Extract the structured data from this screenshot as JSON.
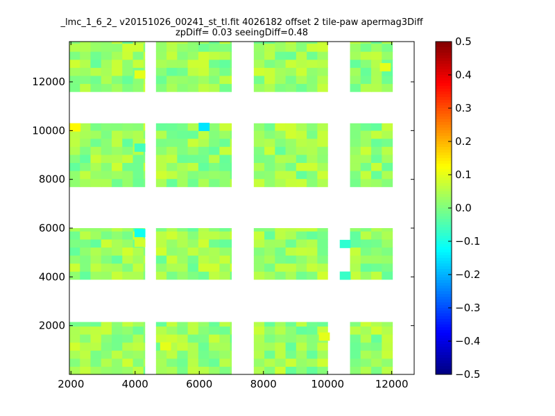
{
  "chart_data": {
    "type": "heatmap",
    "title": "_lmc_1_6_2_ v20151026_00241_st_tl.fit 4026182 offset 2 tile-paw apermag3Diff",
    "subtitle": "zpDiff= 0.03 seeingDiff=0.48",
    "xlabel": "",
    "ylabel": "",
    "xlim": [
      1950,
      12700
    ],
    "ylim": [
      0,
      13650
    ],
    "xticks": [
      "2000",
      "4000",
      "6000",
      "8000",
      "10000",
      "12000"
    ],
    "xtick_values": [
      2000,
      4000,
      6000,
      8000,
      10000,
      12000
    ],
    "yticks": [
      "2000",
      "4000",
      "6000",
      "8000",
      "10000",
      "12000"
    ],
    "ytick_values": [
      2000,
      4000,
      6000,
      8000,
      10000,
      12000
    ],
    "colorbar": {
      "colormap": "jet",
      "range": [
        -0.5,
        0.5
      ],
      "ticks": [
        "0.5",
        "0.4",
        "0.3",
        "0.2",
        "0.1",
        "0.0",
        "−0.1",
        "−0.2",
        "−0.3",
        "−0.4",
        "−0.5"
      ],
      "tick_values": [
        0.5,
        0.4,
        0.3,
        0.2,
        0.1,
        0.0,
        -0.1,
        -0.2,
        -0.3,
        -0.4,
        -0.5
      ]
    },
    "grid": false,
    "detector_columns": [
      [
        1950,
        4300
      ],
      [
        4650,
        7000
      ],
      [
        7700,
        10000
      ],
      [
        10700,
        12700
      ]
    ],
    "detector_rows": [
      [
        0,
        2150
      ],
      [
        3900,
        6000
      ],
      [
        7700,
        10300
      ],
      [
        11600,
        13650
      ]
    ],
    "cell_size": [
      330,
      330
    ],
    "holes": [
      {
        "x": [
          4300,
          4650
        ],
        "y": [
          0,
          2150
        ]
      },
      {
        "x": [
          10000,
          10350
        ],
        "y": [
          0,
          2150
        ]
      },
      {
        "x": [
          12000,
          12700
        ],
        "y": [
          0,
          2150
        ]
      },
      {
        "x": [
          10000,
          10350
        ],
        "y": [
          3900,
          6000
        ]
      },
      {
        "x": [
          12000,
          12700
        ],
        "y": [
          3900,
          6000
        ]
      },
      {
        "x": [
          4300,
          4650
        ],
        "y": [
          7700,
          10300
        ]
      },
      {
        "x": [
          12000,
          12700
        ],
        "y": [
          7700,
          10300
        ]
      },
      {
        "x": [
          4000,
          4300
        ],
        "y": [
          10300,
          11600
        ]
      },
      {
        "x": [
          4300,
          4650
        ],
        "y": [
          11600,
          13650
        ]
      },
      {
        "x": [
          10000,
          10700
        ],
        "y": [
          11600,
          13650
        ]
      },
      {
        "x": [
          12000,
          12700
        ],
        "y": [
          11600,
          13650
        ]
      },
      {
        "x": [
          4650,
          7000
        ],
        "y": [
          10300,
          11600
        ]
      },
      {
        "x": [
          7700,
          10000
        ],
        "y": [
          10300,
          11600
        ]
      },
      {
        "x": [
          10700,
          12700
        ],
        "y": [
          10300,
          11600
        ]
      }
    ],
    "typical_value_range": [
      -0.03,
      0.08
    ],
    "highlight_cells": [
      {
        "x": 2130,
        "y": 10130,
        "value": 0.13
      },
      {
        "x": 6150,
        "y": 10150,
        "value": -0.15
      },
      {
        "x": 4150,
        "y": 5800,
        "value": -0.11
      },
      {
        "x": 4150,
        "y": 5400,
        "value": 0.08
      },
      {
        "x": 10550,
        "y": 5350,
        "value": -0.08
      },
      {
        "x": 10550,
        "y": 4050,
        "value": -0.07
      },
      {
        "x": 4150,
        "y": 12300,
        "value": 0.1
      },
      {
        "x": 11800,
        "y": 12600,
        "value": 0.1
      },
      {
        "x": 4150,
        "y": 9300,
        "value": -0.06
      },
      {
        "x": 4950,
        "y": 1150,
        "value": 0.1
      },
      {
        "x": 9900,
        "y": 1550,
        "value": 0.1
      }
    ]
  }
}
